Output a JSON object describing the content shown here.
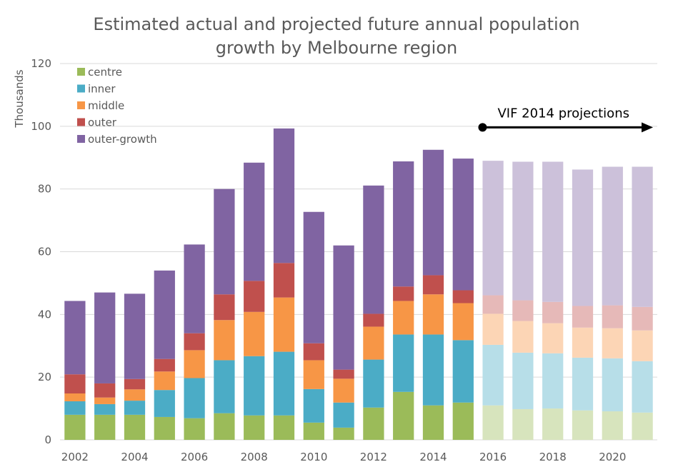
{
  "chart_data": {
    "type": "bar",
    "stacked": true,
    "title_lines": [
      "Estimated actual and projected future annual population",
      "growth by Melbourne region"
    ],
    "title": "Estimated actual and projected future annual population growth by Melbourne region",
    "xlabel": "",
    "ylabel": "Thousands",
    "ylim": [
      0,
      120
    ],
    "yticks": [
      0,
      20,
      40,
      60,
      80,
      100,
      120
    ],
    "grid": true,
    "legend_position": "top-left",
    "categories": [
      "2002",
      "2003",
      "2004",
      "2005",
      "2006",
      "2007",
      "2008",
      "2009",
      "2010",
      "2011",
      "2012",
      "2013",
      "2014",
      "2015",
      "2016",
      "2017",
      "2018",
      "2019",
      "2020",
      "2021"
    ],
    "xtick_labels": [
      "2002",
      "",
      "2004",
      "",
      "2006",
      "",
      "2008",
      "",
      "2010",
      "",
      "2012",
      "",
      "2014",
      "",
      "2016",
      "",
      "2018",
      "",
      "2020",
      ""
    ],
    "projection_start_index": 14,
    "series": [
      {
        "name": "centre",
        "color": "#9BBB59",
        "projected_color": "#D7E4BD",
        "values": [
          8.0,
          8.0,
          8.0,
          7.3,
          6.9,
          8.5,
          7.8,
          7.8,
          5.5,
          3.9,
          10.3,
          15.3,
          11.0,
          11.9,
          11.0,
          9.8,
          10.0,
          9.4,
          9.1,
          8.7
        ]
      },
      {
        "name": "inner",
        "color": "#4BACC6",
        "projected_color": "#B7DEE8",
        "values": [
          4.3,
          3.4,
          4.5,
          8.6,
          12.8,
          16.9,
          18.9,
          20.3,
          10.7,
          8.0,
          15.3,
          18.3,
          22.6,
          19.9,
          19.3,
          18.0,
          17.6,
          16.8,
          16.9,
          16.4
        ]
      },
      {
        "name": "middle",
        "color": "#F79646",
        "projected_color": "#FCD5B5",
        "values": [
          2.5,
          2.1,
          3.6,
          5.9,
          8.9,
          12.8,
          14.1,
          17.3,
          9.2,
          7.6,
          10.5,
          10.7,
          12.8,
          11.8,
          9.9,
          10.1,
          9.6,
          9.6,
          9.6,
          9.8
        ]
      },
      {
        "name": "outer",
        "color": "#C0504D",
        "projected_color": "#E6B9B8",
        "values": [
          6.1,
          4.5,
          3.3,
          4.0,
          5.4,
          8.2,
          9.9,
          11.0,
          5.4,
          2.9,
          4.1,
          4.6,
          6.1,
          4.1,
          5.9,
          6.6,
          6.8,
          6.9,
          7.3,
          7.5
        ]
      },
      {
        "name": "outer-growth",
        "color": "#8064A2",
        "projected_color": "#CCC1DA",
        "values": [
          23.4,
          29.0,
          27.2,
          28.2,
          28.3,
          33.6,
          37.7,
          42.9,
          41.9,
          39.6,
          40.9,
          39.9,
          40.0,
          42.0,
          42.9,
          44.2,
          44.7,
          43.5,
          44.2,
          44.7
        ]
      }
    ],
    "annotations": [
      {
        "text": "VIF 2014 projections",
        "type": "arrow",
        "from_category": "2016",
        "to_category": "2021",
        "at_value": 100
      }
    ]
  }
}
